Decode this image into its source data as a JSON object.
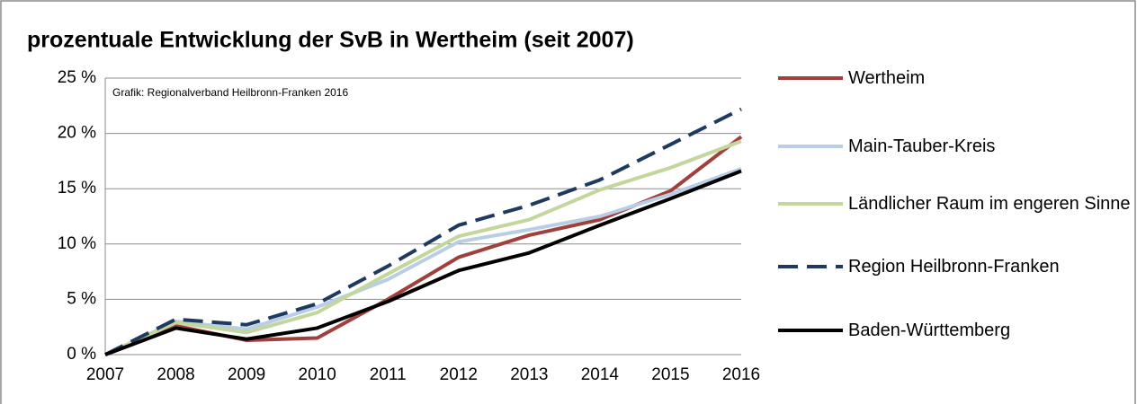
{
  "chart_data": {
    "type": "line",
    "title": "prozentuale Entwicklung der SvB in Wertheim (seit 2007)",
    "annotation": "Grafik: Regionalverband Heilbronn-Franken 2016",
    "categories": [
      "2007",
      "2008",
      "2009",
      "2010",
      "2011",
      "2012",
      "2013",
      "2014",
      "2015",
      "2016"
    ],
    "series": [
      {
        "name": "Wertheim",
        "color": "#a0403c",
        "dashed": false,
        "values": [
          0,
          2.6,
          1.3,
          1.5,
          5.0,
          8.8,
          10.8,
          12.2,
          14.8,
          19.7
        ]
      },
      {
        "name": "Main-Tauber-Kreis",
        "color": "#b9cde5",
        "dashed": false,
        "values": [
          0,
          3.0,
          2.3,
          4.3,
          6.8,
          10.2,
          11.3,
          12.5,
          14.5,
          16.8
        ]
      },
      {
        "name": "Ländlicher Raum im engeren Sinne",
        "color": "#c3d69b",
        "dashed": false,
        "values": [
          0,
          2.9,
          2.0,
          3.8,
          7.3,
          10.7,
          12.2,
          14.9,
          16.9,
          19.3
        ]
      },
      {
        "name": "Region Heilbronn-Franken",
        "color": "#1f3a5f",
        "dashed": true,
        "values": [
          0,
          3.2,
          2.7,
          4.6,
          8.0,
          11.7,
          13.5,
          15.8,
          19.0,
          22.2
        ]
      },
      {
        "name": "Baden-Württemberg",
        "color": "#000000",
        "dashed": false,
        "values": [
          0,
          2.4,
          1.4,
          2.4,
          4.8,
          7.6,
          9.2,
          11.7,
          14.1,
          16.6
        ]
      }
    ],
    "ylim": [
      0,
      25
    ],
    "yticks": [
      {
        "value": 0,
        "label": "0 %"
      },
      {
        "value": 5,
        "label": "5 %"
      },
      {
        "value": 10,
        "label": "10 %"
      },
      {
        "value": 15,
        "label": "15 %"
      },
      {
        "value": 20,
        "label": "20 %"
      },
      {
        "value": 25,
        "label": "25 %"
      }
    ],
    "grid": true,
    "legend": "right"
  }
}
